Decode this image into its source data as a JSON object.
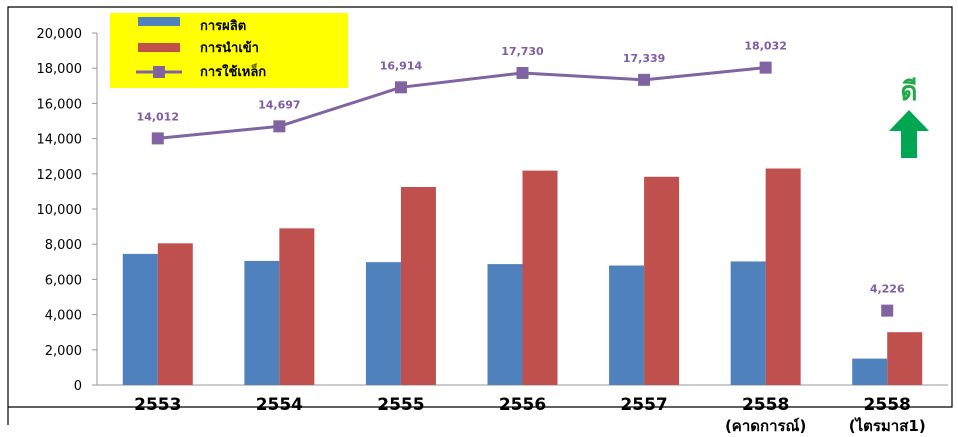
{
  "chart_data": {
    "type": "bar",
    "categories": [
      {
        "line1": "2553",
        "line2": ""
      },
      {
        "line1": "2554",
        "line2": ""
      },
      {
        "line1": "2555",
        "line2": ""
      },
      {
        "line1": "2556",
        "line2": ""
      },
      {
        "line1": "2557",
        "line2": ""
      },
      {
        "line1": "2558",
        "line2": "(คาดการณ์)"
      },
      {
        "line1": "2558",
        "line2": "(ไตรมาส1)"
      }
    ],
    "series": [
      {
        "name": "การผลิต",
        "type": "bar",
        "color": "#4f81bd",
        "values": [
          7450,
          7050,
          6980,
          6870,
          6790,
          7020,
          1500
        ]
      },
      {
        "name": "การนำเข้า",
        "type": "bar",
        "color": "#c0504d",
        "values": [
          8050,
          8900,
          11250,
          12180,
          11830,
          12300,
          3000
        ]
      },
      {
        "name": "การใช้เหล็ก",
        "type": "line",
        "color": "#8064a2",
        "values": [
          14012,
          14697,
          16914,
          17730,
          17339,
          18032,
          4226
        ],
        "labels": [
          "14,012",
          "14,697",
          "16,914",
          "17,730",
          "17,339",
          "18,032",
          "4,226"
        ],
        "connected_points": 6
      }
    ],
    "yticks": [
      "0",
      "2,000",
      "4,000",
      "6,000",
      "8,000",
      "10,000",
      "12,000",
      "14,000",
      "16,000",
      "18,000",
      "20,000"
    ],
    "ylim": [
      0,
      20000
    ],
    "legend_position": "top-left",
    "legend_background": "#ffff00",
    "annotation": {
      "text": "ดี",
      "color": "#21a84a",
      "arrow": "up"
    }
  }
}
